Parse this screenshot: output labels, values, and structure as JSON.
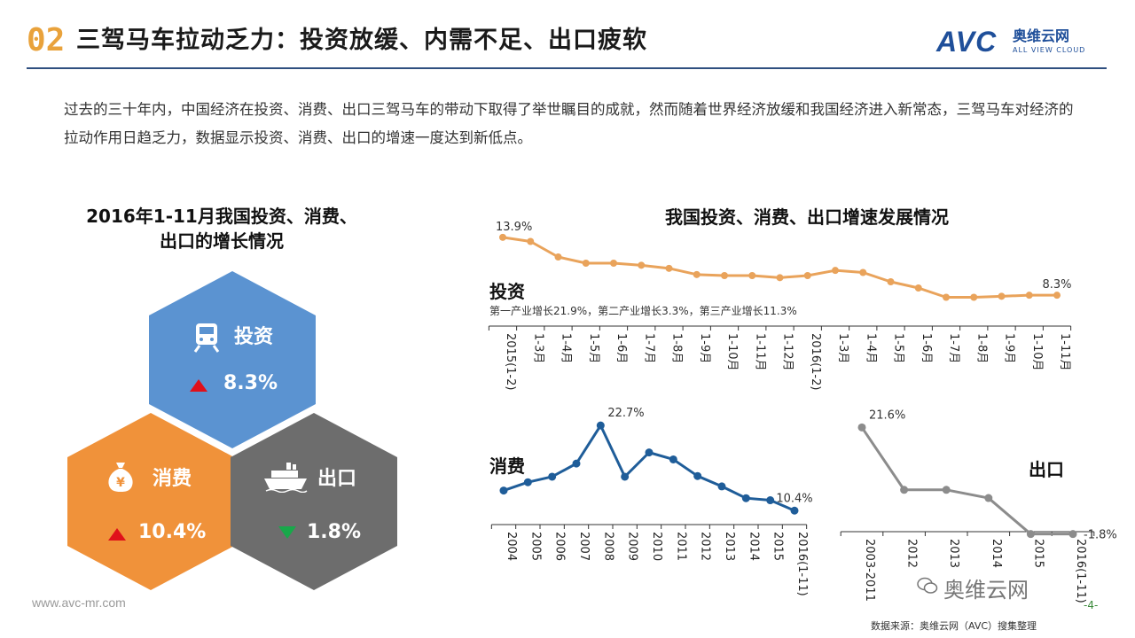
{
  "header": {
    "number": "02",
    "title": "三驾马车拉动乏力：投资放缓、内需不足、出口疲软",
    "logo_mark": "AVC",
    "logo_cn": "奥维云网",
    "logo_en": "ALL VIEW CLOUD"
  },
  "intro": "过去的三十年内，中国经济在投资、消费、出口三驾马车的带动下取得了举世瞩目的成就，然而随着世界经济放缓和我国经济进入新常态，三驾马车对经济的拉动作用日趋乏力，数据显示投资、消费、出口的增速一度达到新低点。",
  "left_panel": {
    "title_line1": "2016年1-11月我国投资、消费、",
    "title_line2": "出口的增长情况",
    "hexes": [
      {
        "label": "投资",
        "value": "8.3%",
        "trend": "up",
        "color": "#5b93d1",
        "icon": "train-icon"
      },
      {
        "label": "消费",
        "value": "10.4%",
        "trend": "up",
        "color": "#f0923a",
        "icon": "money-bag-icon"
      },
      {
        "label": "出口",
        "value": "1.8%",
        "trend": "down",
        "color": "#6d6d6d",
        "icon": "ship-icon"
      }
    ]
  },
  "right_title": "我国投资、消费、出口增速发展情况",
  "chart_data": [
    {
      "type": "line",
      "title": "投资",
      "note": "第一产业增长21.9%，第二产业增长3.3%，第三产业增长11.3%",
      "color": "#e9a35b",
      "categories": [
        "2015(1-2)",
        "1-3月",
        "1-4月",
        "1-5月",
        "1-6月",
        "1-7月",
        "1-8月",
        "1-9月",
        "1-10月",
        "1-11月",
        "1-12月",
        "2016(1-2)",
        "1-3月",
        "1-4月",
        "1-5月",
        "1-6月",
        "1-7月",
        "1-8月",
        "1-9月",
        "1-10月",
        "1-11月"
      ],
      "values": [
        13.9,
        13.5,
        12.0,
        11.4,
        11.4,
        11.2,
        10.9,
        10.3,
        10.2,
        10.2,
        10.0,
        10.2,
        10.7,
        10.5,
        9.6,
        9.0,
        8.1,
        8.1,
        8.2,
        8.3,
        8.3
      ],
      "labels": [
        {
          "index": 0,
          "text": "13.9%"
        },
        {
          "index": 20,
          "text": "8.3%"
        }
      ],
      "ylim": [
        6,
        15
      ]
    },
    {
      "type": "line",
      "title": "消费",
      "color": "#1f5d99",
      "categories": [
        "2004",
        "2005",
        "2006",
        "2007",
        "2008",
        "2009",
        "2010",
        "2011",
        "2012",
        "2013",
        "2014",
        "2015",
        "2016(1-11)"
      ],
      "values": [
        13.3,
        14.5,
        15.3,
        17.2,
        22.7,
        15.3,
        18.8,
        17.8,
        15.4,
        13.9,
        12.2,
        11.9,
        10.4
      ],
      "labels": [
        {
          "index": 4,
          "text": "22.7%"
        },
        {
          "index": 12,
          "text": "10.4%"
        }
      ],
      "ylim": [
        8,
        24
      ]
    },
    {
      "type": "line",
      "title": "出口",
      "color": "#8c8c8c",
      "categories": [
        "2003-2011",
        "2012",
        "2013",
        "2014",
        "2015",
        "2016(1-11)"
      ],
      "values": [
        21.6,
        7.9,
        7.9,
        6.1,
        -1.8,
        -1.8
      ],
      "labels": [
        {
          "index": 0,
          "text": "21.6%"
        },
        {
          "index": 5,
          "text": "-1.8%"
        }
      ],
      "ylim": [
        -4,
        24
      ]
    }
  ],
  "footer": {
    "website": "www.avc-mr.com",
    "source": "数据来源：奥维云网（AVC）搜集整理",
    "page": "-4-",
    "watermark": "奥维云网"
  }
}
